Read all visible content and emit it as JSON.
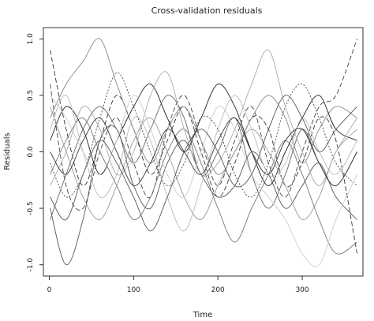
{
  "chart_data": {
    "type": "line",
    "title": "Cross-validation residuals",
    "xlabel": "Time",
    "ylabel": "Residuals",
    "xlim": [
      -7,
      372
    ],
    "ylim": [
      -1.1,
      1.1
    ],
    "x_ticks": [
      0,
      100,
      200,
      300
    ],
    "x_tick_labels": [
      "0",
      "100",
      "200",
      "300"
    ],
    "y_ticks": [
      -1.0,
      -0.5,
      0.0,
      0.5,
      1.0
    ],
    "y_tick_labels": [
      "-1.0",
      "-0.5",
      "0.0",
      "0.5",
      "1.0"
    ],
    "grid": false,
    "legend": "none",
    "x": [
      1,
      20,
      40,
      60,
      80,
      100,
      120,
      140,
      160,
      180,
      200,
      220,
      240,
      260,
      280,
      300,
      320,
      340,
      365
    ],
    "series": [
      {
        "values": [
          0.9,
          0.2,
          -0.3,
          0.1,
          0.5,
          0.2,
          -0.2,
          0.1,
          0.4,
          0.0,
          -0.4,
          -0.1,
          0.3,
          0.2,
          -0.3,
          -0.1,
          0.3,
          0.1,
          -0.9
        ],
        "color": "#333333",
        "dash": "6,3"
      },
      {
        "values": [
          0.6,
          -0.3,
          -0.5,
          0.0,
          0.3,
          -0.1,
          -0.4,
          0.2,
          0.5,
          0.1,
          -0.3,
          0.1,
          0.4,
          -0.1,
          -0.4,
          0.0,
          0.4,
          0.5,
          1.0
        ],
        "color": "#444444",
        "dash": "6,3"
      },
      {
        "values": [
          -0.5,
          -1.0,
          -0.6,
          0.1,
          0.2,
          -0.3,
          -0.5,
          -0.1,
          0.1,
          -0.2,
          -0.4,
          -0.3,
          0.0,
          -0.2,
          -0.5,
          -0.3,
          -0.1,
          -0.4,
          -0.6
        ],
        "color": "#555555",
        "dash": ""
      },
      {
        "values": [
          0.3,
          0.6,
          0.8,
          1.0,
          0.6,
          0.2,
          -0.1,
          0.2,
          0.4,
          0.1,
          -0.2,
          0.0,
          0.3,
          0.5,
          0.3,
          -0.1,
          0.2,
          0.4,
          0.3
        ],
        "color": "#888888",
        "dash": ""
      },
      {
        "values": [
          -0.2,
          0.1,
          0.3,
          0.0,
          -0.3,
          -0.6,
          -0.4,
          0.0,
          0.2,
          -0.1,
          -0.5,
          -0.8,
          -0.5,
          -0.2,
          0.1,
          -0.2,
          -0.6,
          -0.9,
          -0.8
        ],
        "color": "#777777",
        "dash": ""
      },
      {
        "values": [
          0.1,
          0.4,
          0.2,
          -0.2,
          0.1,
          0.4,
          0.6,
          0.3,
          0.0,
          0.3,
          0.6,
          0.4,
          0.0,
          -0.3,
          0.0,
          0.3,
          0.5,
          0.2,
          0.1
        ],
        "color": "#222222",
        "dash": ""
      },
      {
        "values": [
          -0.6,
          -0.2,
          0.2,
          0.4,
          0.2,
          -0.1,
          0.2,
          0.5,
          0.3,
          -0.2,
          0.0,
          0.3,
          -0.2,
          -0.5,
          -0.2,
          0.2,
          -0.1,
          -0.3,
          0.0
        ],
        "color": "#666666",
        "dash": ""
      },
      {
        "values": [
          0.4,
          0.0,
          -0.4,
          -0.6,
          -0.3,
          0.1,
          0.3,
          0.0,
          -0.4,
          -0.6,
          -0.3,
          0.0,
          0.2,
          0.0,
          -0.3,
          -0.6,
          -0.4,
          0.0,
          0.2
        ],
        "color": "#999999",
        "dash": ""
      },
      {
        "values": [
          -0.1,
          -0.4,
          -0.2,
          0.3,
          0.7,
          0.4,
          0.0,
          -0.3,
          -0.1,
          0.3,
          0.2,
          -0.2,
          -0.4,
          -0.1,
          0.4,
          0.6,
          0.3,
          -0.1,
          -0.3
        ],
        "color": "#444444",
        "dash": "2,2"
      },
      {
        "values": [
          0.2,
          0.5,
          0.0,
          -0.4,
          -0.2,
          0.3,
          0.1,
          -0.4,
          -0.7,
          -0.3,
          0.2,
          0.5,
          0.2,
          -0.2,
          -0.1,
          0.3,
          0.0,
          -0.2,
          0.1
        ],
        "color": "#bbbbbb",
        "dash": ""
      },
      {
        "values": [
          -0.3,
          0.0,
          0.4,
          0.2,
          -0.2,
          0.0,
          0.5,
          0.7,
          0.2,
          -0.2,
          -0.1,
          0.2,
          0.6,
          0.9,
          0.4,
          0.0,
          -0.3,
          0.0,
          0.3
        ],
        "color": "#aaaaaa",
        "dash": ""
      },
      {
        "values": [
          0.0,
          -0.2,
          0.1,
          0.3,
          0.0,
          -0.3,
          -0.1,
          0.2,
          0.0,
          -0.2,
          0.1,
          0.3,
          0.0,
          -0.2,
          0.1,
          0.2,
          -0.1,
          -0.3,
          0.0
        ],
        "color": "#333333",
        "dash": ""
      },
      {
        "values": [
          0.5,
          0.3,
          0.0,
          -0.2,
          0.1,
          0.5,
          0.2,
          -0.2,
          -0.4,
          0.0,
          0.4,
          0.2,
          -0.2,
          -0.4,
          -0.6,
          -0.9,
          -1.0,
          -0.6,
          -0.2
        ],
        "color": "#cccccc",
        "dash": ""
      },
      {
        "values": [
          -0.4,
          -0.6,
          -0.2,
          0.1,
          -0.1,
          -0.4,
          -0.7,
          -0.4,
          0.0,
          0.2,
          0.0,
          -0.3,
          -0.2,
          0.2,
          0.5,
          0.3,
          0.0,
          0.2,
          0.4
        ],
        "color": "#555555",
        "dash": ""
      }
    ]
  }
}
